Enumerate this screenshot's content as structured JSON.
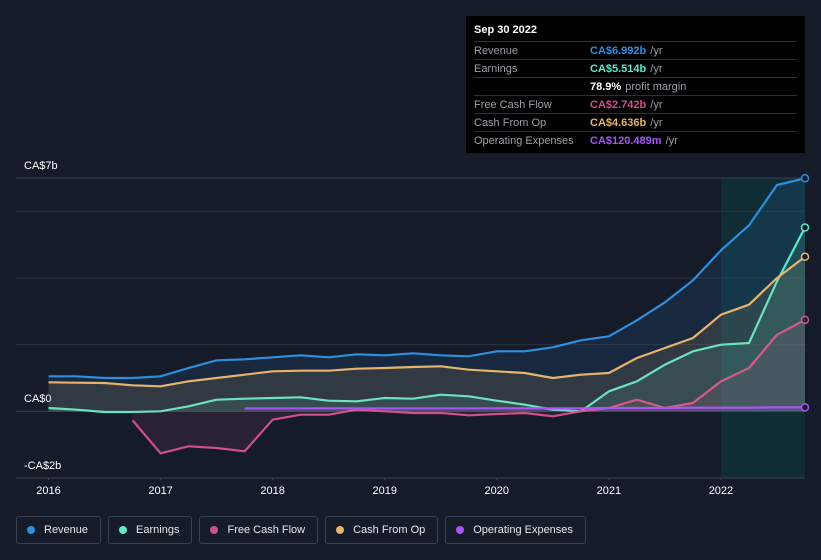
{
  "chart_data": {
    "type": "line",
    "x": [
      2016,
      2016.25,
      2016.5,
      2016.75,
      2017,
      2017.25,
      2017.5,
      2017.75,
      2018,
      2018.25,
      2018.5,
      2018.75,
      2019,
      2019.25,
      2019.5,
      2019.75,
      2020,
      2020.25,
      2020.5,
      2020.75,
      2021,
      2021.25,
      2021.5,
      2021.75,
      2022,
      2022.25,
      2022.5,
      2022.75
    ],
    "xlim": [
      2015.71,
      2022.75
    ],
    "xticks": [
      2016,
      2017,
      2018,
      2019,
      2020,
      2021,
      2022
    ],
    "ylim": [
      -2,
      7
    ],
    "yticks": [
      {
        "value": 7,
        "label": "CA$7b"
      },
      {
        "value": 0,
        "label": "CA$0"
      },
      {
        "value": -2,
        "label": "-CA$2b"
      }
    ],
    "ygrid": [
      2,
      4,
      6
    ],
    "series": [
      {
        "name": "Revenue",
        "color": "#2e8fdd",
        "values": [
          1.05,
          1.05,
          1.0,
          1.0,
          1.05,
          1.3,
          1.53,
          1.56,
          1.62,
          1.68,
          1.62,
          1.71,
          1.68,
          1.74,
          1.68,
          1.65,
          1.8,
          1.8,
          1.92,
          2.13,
          2.25,
          2.73,
          3.27,
          3.93,
          4.83,
          5.58,
          6.79,
          6.992
        ]
      },
      {
        "name": "Earnings",
        "color": "#5ee8c9",
        "values": [
          0.1,
          0.05,
          -0.02,
          -0.02,
          0.0,
          0.15,
          0.35,
          0.38,
          0.4,
          0.42,
          0.32,
          0.3,
          0.4,
          0.38,
          0.5,
          0.45,
          0.32,
          0.2,
          0.05,
          0.0,
          0.6,
          0.9,
          1.4,
          1.8,
          2.0,
          2.05,
          3.9,
          5.514
        ]
      },
      {
        "name": "Free Cash Flow",
        "color": "#d1508a",
        "values": [
          null,
          null,
          null,
          -0.27,
          -1.26,
          -1.05,
          -1.1,
          -1.2,
          -0.25,
          -0.1,
          -0.1,
          0.05,
          0.0,
          -0.05,
          -0.05,
          -0.12,
          -0.08,
          -0.05,
          -0.15,
          0.0,
          0.1,
          0.35,
          0.1,
          0.25,
          0.9,
          1.3,
          2.3,
          2.742
        ]
      },
      {
        "name": "Cash From Op",
        "color": "#e6b46c",
        "values": [
          0.87,
          0.86,
          0.85,
          0.78,
          0.75,
          0.9,
          1.0,
          1.1,
          1.2,
          1.22,
          1.22,
          1.28,
          1.3,
          1.33,
          1.35,
          1.25,
          1.2,
          1.15,
          1.0,
          1.1,
          1.15,
          1.6,
          1.9,
          2.2,
          2.9,
          3.2,
          4.0,
          4.636
        ]
      },
      {
        "name": "Operating Expenses",
        "color": "#a855f7",
        "values": [
          null,
          null,
          null,
          null,
          null,
          null,
          null,
          0.09,
          0.09,
          0.09,
          0.09,
          0.09,
          0.09,
          0.09,
          0.09,
          0.09,
          0.09,
          0.09,
          0.09,
          0.09,
          0.1,
          0.1,
          0.1,
          0.11,
          0.11,
          0.11,
          0.12,
          0.12
        ]
      }
    ],
    "tooltip": {
      "date": "Sep 30 2022",
      "rows": [
        {
          "label": "Revenue",
          "value": "CA$6.992b",
          "unit": "/yr",
          "color": "#2e8fdd"
        },
        {
          "label": "Earnings",
          "value": "CA$5.514b",
          "unit": "/yr",
          "color": "#5ee8c9"
        },
        {
          "value": "78.9%",
          "unit": "profit margin",
          "color": "#ffffff"
        },
        {
          "label": "Free Cash Flow",
          "value": "CA$2.742b",
          "unit": "/yr",
          "color": "#d1508a"
        },
        {
          "label": "Cash From Op",
          "value": "CA$4.636b",
          "unit": "/yr",
          "color": "#e6b46c"
        },
        {
          "label": "Operating Expenses",
          "value": "CA$120.489m",
          "unit": "/yr",
          "color": "#a855f7"
        }
      ]
    }
  }
}
